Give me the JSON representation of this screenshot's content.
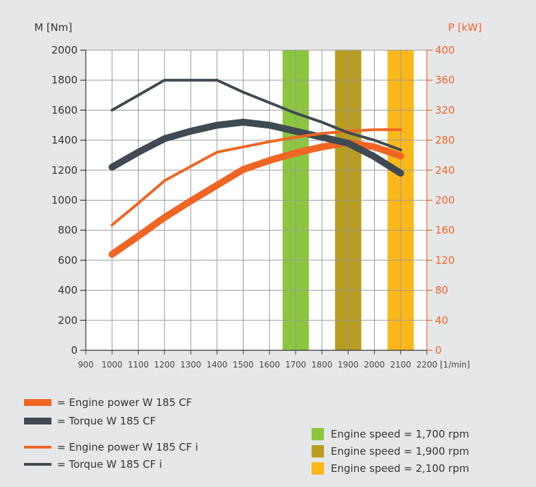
{
  "chart_data": {
    "type": "line",
    "left_axis_title": "M [Nm]",
    "right_axis_title": "P [kW]",
    "x_unit_label": "[1/min]",
    "xlim": [
      900,
      2200
    ],
    "x_ticks": [
      900,
      1000,
      1100,
      1200,
      1300,
      1400,
      1500,
      1600,
      1700,
      1800,
      1900,
      2000,
      2100,
      2200
    ],
    "left_ylim": [
      0,
      2000
    ],
    "left_ticks": [
      0,
      200,
      400,
      600,
      800,
      1000,
      1200,
      1400,
      1600,
      1800,
      2000
    ],
    "right_ylim": [
      0,
      400
    ],
    "right_ticks": [
      0,
      40,
      80,
      120,
      160,
      200,
      240,
      280,
      320,
      360,
      400
    ],
    "grid": true,
    "colors": {
      "orange": "#f06524",
      "dark": "#3f4a52",
      "green": "#8cc63f",
      "olive": "#b89d22",
      "yellow": "#fbb81b",
      "panel": "#e6e7e9"
    },
    "bands": [
      {
        "name": "Engine speed = 1,700 rpm",
        "from": 1650,
        "to": 1750,
        "color": "#8cc63f"
      },
      {
        "name": "Engine speed = 1,900 rpm",
        "from": 1850,
        "to": 1950,
        "color": "#b89d22"
      },
      {
        "name": "Engine speed = 2,100 rpm",
        "from": 2050,
        "to": 2150,
        "color": "#fbb81b"
      }
    ],
    "series": [
      {
        "name": "= Engine power W 185 CF",
        "axis": "right",
        "color": "#f06524",
        "weight": "thick",
        "x": [
          1000,
          1100,
          1200,
          1300,
          1400,
          1500,
          1600,
          1700,
          1800,
          1900,
          2000,
          2100
        ],
        "values": [
          128,
          152,
          177,
          199,
          220,
          241,
          253,
          263,
          271,
          277,
          271,
          259
        ]
      },
      {
        "name": "= Torque W 185 CF",
        "axis": "left",
        "color": "#3f4a52",
        "weight": "thick",
        "x": [
          1000,
          1100,
          1200,
          1300,
          1400,
          1500,
          1600,
          1700,
          1800,
          1900,
          2000,
          2100
        ],
        "values": [
          1220,
          1320,
          1410,
          1460,
          1500,
          1520,
          1500,
          1460,
          1420,
          1380,
          1290,
          1180
        ]
      },
      {
        "name": "= Engine power W 185 CF i",
        "axis": "right",
        "color": "#f06524",
        "weight": "thin",
        "x": [
          1000,
          1100,
          1200,
          1300,
          1400,
          1500,
          1600,
          1700,
          1800,
          1900,
          2000,
          2100
        ],
        "values": [
          167,
          196,
          226,
          245,
          264,
          271,
          278,
          284,
          289,
          292,
          294,
          294
        ]
      },
      {
        "name": "= Torque W 185 CF i",
        "axis": "left",
        "color": "#3f4a52",
        "weight": "thin",
        "x": [
          1000,
          1100,
          1200,
          1300,
          1400,
          1500,
          1600,
          1700,
          1800,
          1900,
          2000,
          2100
        ],
        "values": [
          1600,
          1700,
          1800,
          1800,
          1800,
          1720,
          1650,
          1580,
          1520,
          1450,
          1400,
          1335
        ]
      }
    ]
  }
}
